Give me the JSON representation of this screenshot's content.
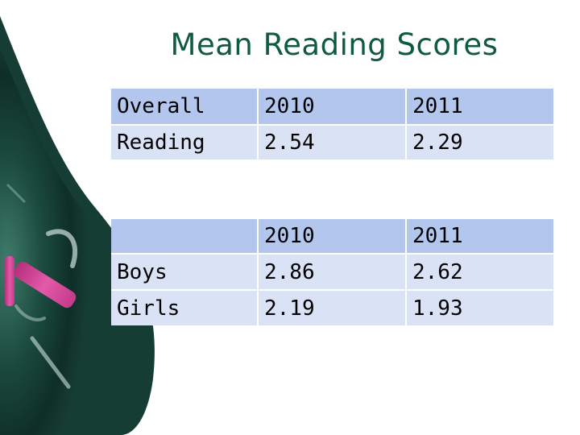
{
  "slide": {
    "title": "Mean Reading Scores",
    "table_overall": {
      "header": [
        "Overall",
        "2010",
        "2011"
      ],
      "row": [
        "Reading",
        "2.54",
        "2.29"
      ]
    },
    "table_gender": {
      "header": [
        "",
        "2010",
        "2011"
      ],
      "rows": [
        [
          "Boys",
          "2.86",
          "2.62"
        ],
        [
          "Girls",
          "2.19",
          "1.93"
        ]
      ]
    }
  },
  "colors": {
    "title": "#0f5a42",
    "header_cell": "#b3c7ee",
    "body_cell": "#dae3f5",
    "chalkboard": "#1b4a3e",
    "chalk_pink": "#d9469a"
  }
}
